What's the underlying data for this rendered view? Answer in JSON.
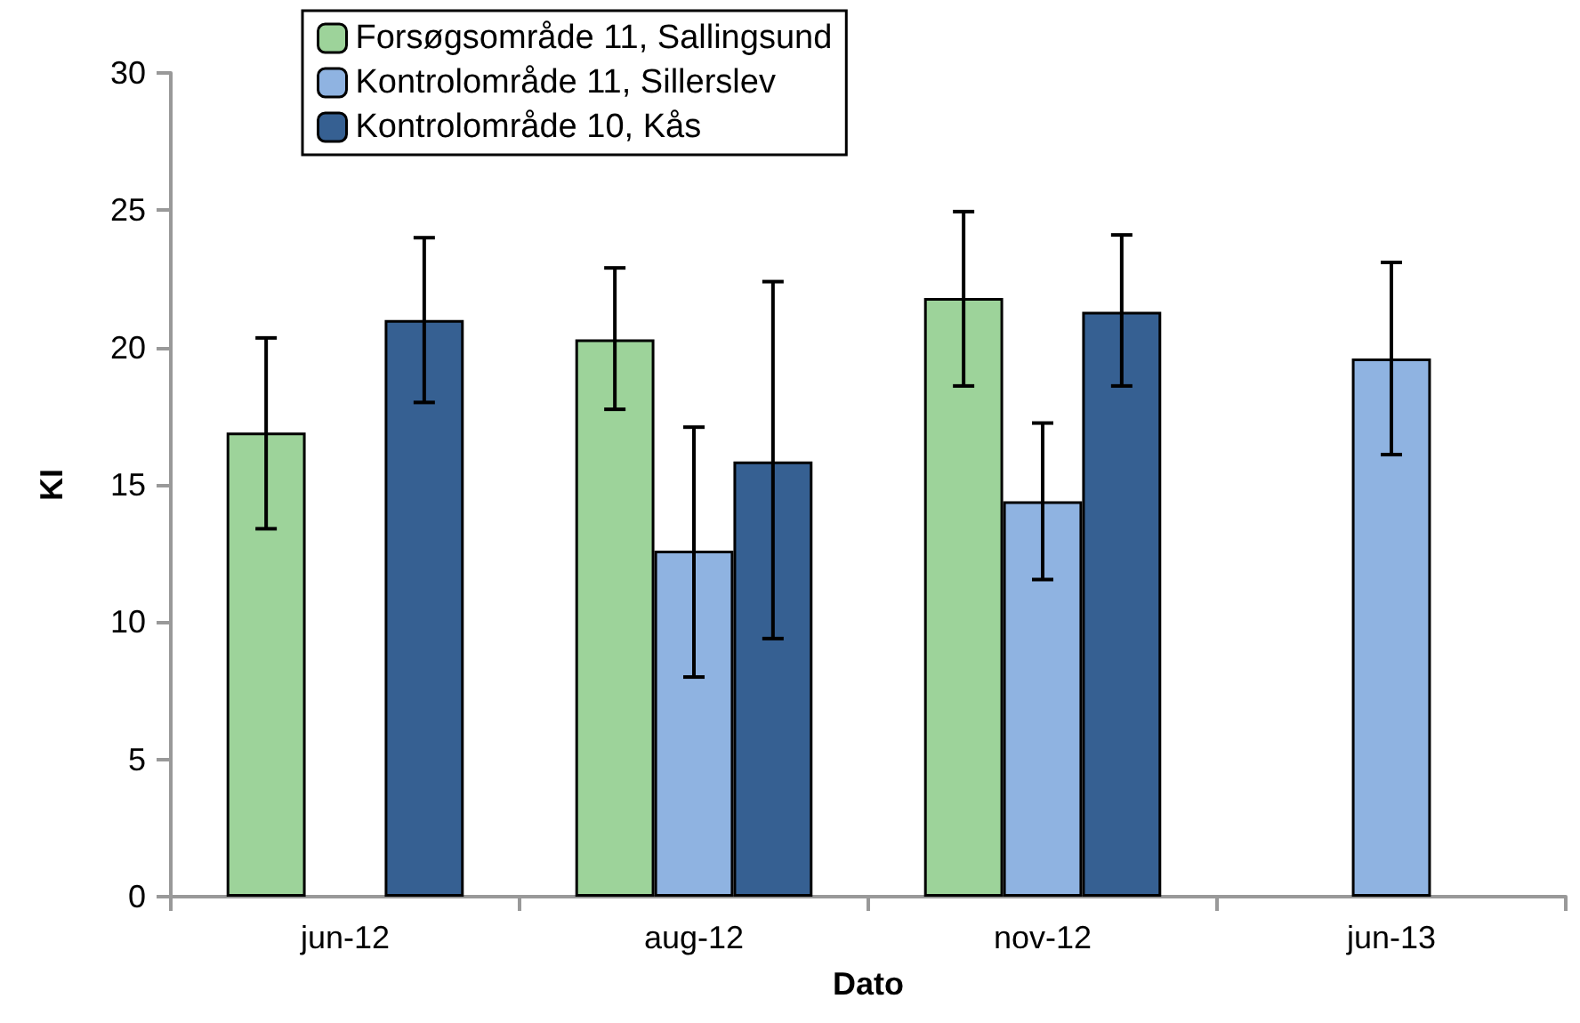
{
  "chart_data": {
    "type": "bar",
    "xlabel": "Dato",
    "ylabel": "KI",
    "categories": [
      "jun-12",
      "aug-12",
      "nov-12",
      "jun-13"
    ],
    "series": [
      {
        "name": "Forsøgsområde 11, Sallingsund",
        "color": "#9dd39a",
        "values": [
          16.9,
          20.3,
          21.8,
          null
        ],
        "errors": [
          [
            13.4,
            20.35
          ],
          [
            17.75,
            22.9
          ],
          [
            18.6,
            24.95
          ],
          null
        ]
      },
      {
        "name": "Kontrolområde 11, Sillerslev",
        "color": "#8fb3e1",
        "values": [
          null,
          12.6,
          14.4,
          19.6
        ],
        "errors": [
          null,
          [
            8.0,
            17.1
          ],
          [
            11.55,
            17.25
          ],
          [
            16.1,
            23.1
          ]
        ]
      },
      {
        "name": "Kontrolområde 10, Kås",
        "color": "#366092",
        "values": [
          21.0,
          15.85,
          21.3,
          null
        ],
        "errors": [
          [
            18.0,
            24.0
          ],
          [
            9.4,
            22.4
          ],
          [
            18.6,
            24.1
          ],
          null
        ]
      }
    ],
    "ylim": [
      0,
      30
    ],
    "yticks": [
      0,
      5,
      10,
      15,
      20,
      25,
      30
    ],
    "grid": false,
    "legend": "top"
  }
}
